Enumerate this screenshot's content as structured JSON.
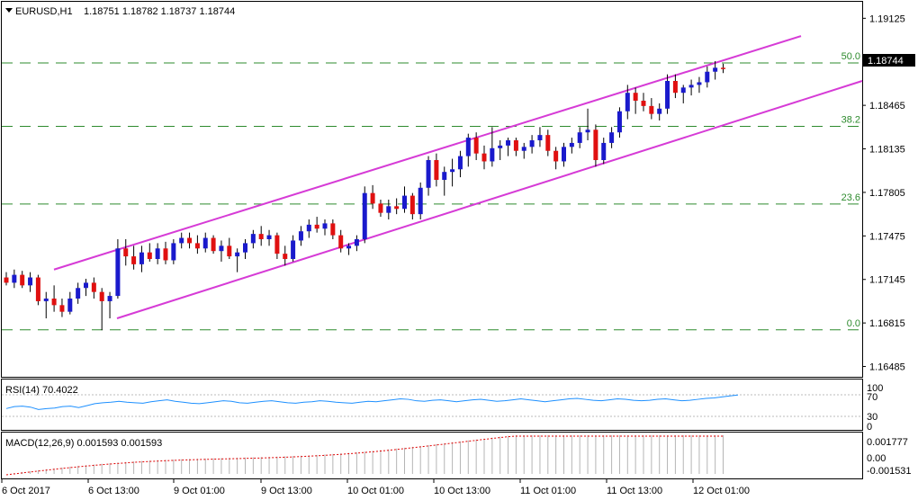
{
  "header": {
    "symbol": "EURUSD,H1",
    "ohlc": "1.18751 1.18782 1.18737 1.18744"
  },
  "price_axis": {
    "ticks": [
      "1.19125",
      "1.18795",
      "1.18465",
      "1.18135",
      "1.17805",
      "1.17475",
      "1.17145",
      "1.16815",
      "1.16485"
    ],
    "current_price": "1.18744"
  },
  "fib_levels": [
    {
      "label": "50.0",
      "price": 1.18786
    },
    {
      "label": "38.2",
      "price": 1.18306
    },
    {
      "label": "23.6",
      "price": 1.17717
    },
    {
      "label": "0.0",
      "price": 1.16763
    }
  ],
  "time_axis": {
    "labels": [
      "6 Oct 2017",
      "6 Oct 13:00",
      "9 Oct 01:00",
      "9 Oct 13:00",
      "10 Oct 01:00",
      "10 Oct 13:00",
      "11 Oct 01:00",
      "11 Oct 13:00",
      "12 Oct 01:00"
    ]
  },
  "rsi": {
    "title": "RSI(14) 70.4022",
    "ticks": [
      "100",
      "70",
      "30",
      "0"
    ],
    "values": [
      42,
      46,
      47,
      45,
      40,
      42,
      43,
      46,
      47,
      44,
      48,
      52,
      54,
      55,
      57,
      55,
      54,
      53,
      56,
      58,
      60,
      57,
      55,
      53,
      52,
      54,
      56,
      58,
      57,
      54,
      53,
      55,
      57,
      58,
      56,
      54,
      53,
      55,
      56,
      58,
      57,
      55,
      54,
      53,
      55,
      57,
      56,
      58,
      60,
      62,
      61,
      58,
      57,
      59,
      60,
      58,
      56,
      58,
      60,
      61,
      59,
      57,
      58,
      60,
      62,
      60,
      58,
      56,
      58,
      60,
      62,
      63,
      61,
      59,
      58,
      60,
      62,
      61,
      59,
      58,
      59,
      61,
      62,
      60,
      58,
      59,
      61,
      63,
      64,
      66,
      68,
      70
    ]
  },
  "macd": {
    "title": "MACD(12,26,9) 0.001593 0.001593",
    "ticks": [
      "0.001777",
      "0.00",
      "-0.001531"
    ]
  },
  "chart_data": {
    "type": "candlestick",
    "symbol": "EURUSD",
    "timeframe": "H1",
    "ylim": [
      1.164,
      1.1925
    ],
    "candles": [
      [
        1.1716,
        1.172,
        1.171,
        1.1712
      ],
      [
        1.1712,
        1.1722,
        1.1708,
        1.1718
      ],
      [
        1.1718,
        1.1721,
        1.1708,
        1.171
      ],
      [
        1.171,
        1.172,
        1.1705,
        1.1716
      ],
      [
        1.1716,
        1.1718,
        1.1695,
        1.1698
      ],
      [
        1.1698,
        1.1705,
        1.1685,
        1.17
      ],
      [
        1.17,
        1.171,
        1.169,
        1.1695
      ],
      [
        1.1695,
        1.17,
        1.1686,
        1.169
      ],
      [
        1.169,
        1.1705,
        1.1688,
        1.17
      ],
      [
        1.17,
        1.1712,
        1.1696,
        1.1708
      ],
      [
        1.1708,
        1.1715,
        1.1702,
        1.1712
      ],
      [
        1.1712,
        1.1716,
        1.17,
        1.1705
      ],
      [
        1.1705,
        1.1708,
        1.1676,
        1.1698
      ],
      [
        1.1698,
        1.1705,
        1.1685,
        1.1702
      ],
      [
        1.1702,
        1.1745,
        1.17,
        1.1738
      ],
      [
        1.1738,
        1.1745,
        1.1725,
        1.1732
      ],
      [
        1.1732,
        1.174,
        1.1722,
        1.1726
      ],
      [
        1.1726,
        1.174,
        1.172,
        1.1735
      ],
      [
        1.1735,
        1.1742,
        1.1728,
        1.173
      ],
      [
        1.173,
        1.1742,
        1.1726,
        1.1738
      ],
      [
        1.1738,
        1.1743,
        1.1726,
        1.1729
      ],
      [
        1.1729,
        1.1745,
        1.1726,
        1.1742
      ],
      [
        1.1742,
        1.175,
        1.1738,
        1.1746
      ],
      [
        1.1746,
        1.175,
        1.1738,
        1.1742
      ],
      [
        1.1742,
        1.1748,
        1.1734,
        1.1738
      ],
      [
        1.1738,
        1.175,
        1.1735,
        1.1746
      ],
      [
        1.1746,
        1.1748,
        1.1734,
        1.1736
      ],
      [
        1.1736,
        1.1744,
        1.1728,
        1.174
      ],
      [
        1.174,
        1.1746,
        1.173,
        1.1732
      ],
      [
        1.1732,
        1.1738,
        1.172,
        1.1735
      ],
      [
        1.1735,
        1.1745,
        1.173,
        1.1742
      ],
      [
        1.1742,
        1.1752,
        1.1738,
        1.1749
      ],
      [
        1.1749,
        1.1755,
        1.174,
        1.1745
      ],
      [
        1.1745,
        1.1752,
        1.174,
        1.1748
      ],
      [
        1.1748,
        1.175,
        1.173,
        1.1734
      ],
      [
        1.1734,
        1.174,
        1.1725,
        1.173
      ],
      [
        1.173,
        1.1748,
        1.1728,
        1.1744
      ],
      [
        1.1744,
        1.1755,
        1.174,
        1.1751
      ],
      [
        1.1751,
        1.176,
        1.1746,
        1.1756
      ],
      [
        1.1756,
        1.1762,
        1.175,
        1.1753
      ],
      [
        1.1753,
        1.176,
        1.1748,
        1.1757
      ],
      [
        1.1757,
        1.176,
        1.1745,
        1.1748
      ],
      [
        1.1748,
        1.1752,
        1.1735,
        1.1738
      ],
      [
        1.1738,
        1.1742,
        1.1733,
        1.174
      ],
      [
        1.174,
        1.1748,
        1.1736,
        1.1745
      ],
      [
        1.1745,
        1.1785,
        1.1742,
        1.178
      ],
      [
        1.178,
        1.1786,
        1.1768,
        1.1772
      ],
      [
        1.1772,
        1.1775,
        1.1762,
        1.1765
      ],
      [
        1.1765,
        1.1775,
        1.176,
        1.177
      ],
      [
        1.177,
        1.1776,
        1.1764,
        1.1768
      ],
      [
        1.1768,
        1.1785,
        1.1765,
        1.1778
      ],
      [
        1.1778,
        1.178,
        1.176,
        1.1764
      ],
      [
        1.1764,
        1.1788,
        1.176,
        1.1784
      ],
      [
        1.1784,
        1.1808,
        1.1778,
        1.1805
      ],
      [
        1.1805,
        1.181,
        1.1785,
        1.179
      ],
      [
        1.179,
        1.18,
        1.1778,
        1.1796
      ],
      [
        1.1796,
        1.1806,
        1.1785,
        1.1798
      ],
      [
        1.1798,
        1.1812,
        1.1792,
        1.1808
      ],
      [
        1.1808,
        1.1825,
        1.18,
        1.1822
      ],
      [
        1.1822,
        1.1826,
        1.1805,
        1.181
      ],
      [
        1.181,
        1.1816,
        1.1798,
        1.1804
      ],
      [
        1.1804,
        1.183,
        1.18,
        1.1814
      ],
      [
        1.1814,
        1.182,
        1.1805,
        1.1816
      ],
      [
        1.1816,
        1.1822,
        1.1808,
        1.182
      ],
      [
        1.182,
        1.1822,
        1.1808,
        1.1812
      ],
      [
        1.1812,
        1.1818,
        1.1806,
        1.1815
      ],
      [
        1.1815,
        1.1824,
        1.181,
        1.182
      ],
      [
        1.182,
        1.183,
        1.1815,
        1.1824
      ],
      [
        1.1824,
        1.1828,
        1.1808,
        1.1812
      ],
      [
        1.1812,
        1.1815,
        1.1798,
        1.1804
      ],
      [
        1.1804,
        1.1818,
        1.18,
        1.1815
      ],
      [
        1.1815,
        1.1822,
        1.181,
        1.1818
      ],
      [
        1.1818,
        1.183,
        1.1814,
        1.1826
      ],
      [
        1.1826,
        1.1844,
        1.182,
        1.1828
      ],
      [
        1.1828,
        1.1832,
        1.18,
        1.1805
      ],
      [
        1.1805,
        1.1822,
        1.1802,
        1.1818
      ],
      [
        1.1818,
        1.183,
        1.1814,
        1.1826
      ],
      [
        1.1826,
        1.1845,
        1.1822,
        1.1842
      ],
      [
        1.1842,
        1.1862,
        1.1836,
        1.1856
      ],
      [
        1.1856,
        1.186,
        1.184,
        1.185
      ],
      [
        1.185,
        1.1856,
        1.1842,
        1.1846
      ],
      [
        1.1846,
        1.1852,
        1.1836,
        1.184
      ],
      [
        1.184,
        1.1848,
        1.1835,
        1.1844
      ],
      [
        1.1844,
        1.187,
        1.184,
        1.1865
      ],
      [
        1.1865,
        1.187,
        1.1852,
        1.1856
      ],
      [
        1.1856,
        1.1862,
        1.1848,
        1.186
      ],
      [
        1.186,
        1.1866,
        1.1854,
        1.1862
      ],
      [
        1.1862,
        1.1868,
        1.1856,
        1.1864
      ],
      [
        1.1864,
        1.1876,
        1.186,
        1.1872
      ],
      [
        1.1872,
        1.188,
        1.1866,
        1.1875
      ],
      [
        1.1875,
        1.1878,
        1.1871,
        1.1874
      ]
    ]
  }
}
